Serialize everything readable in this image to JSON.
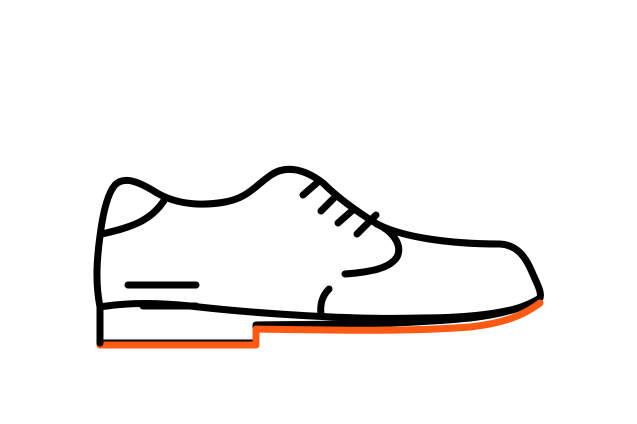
{
  "illustration": {
    "icon": "shoe-icon",
    "colors": {
      "outline": "#000000",
      "sole_accent": "#ff5a14",
      "background": "#ffffff"
    }
  }
}
